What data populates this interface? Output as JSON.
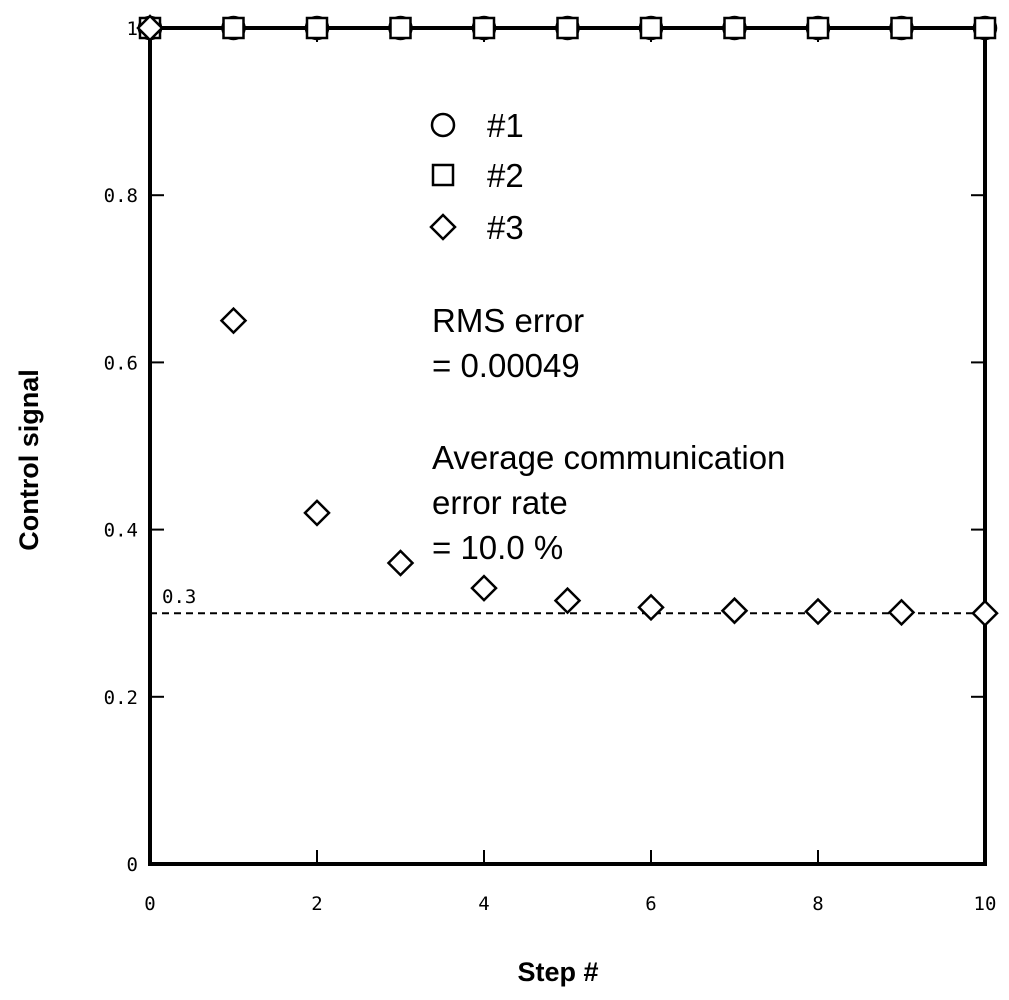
{
  "chart_data": {
    "type": "scatter",
    "title": "",
    "xlabel": "Step #",
    "ylabel": "Control signal",
    "xlim": [
      0,
      10
    ],
    "ylim": [
      0,
      1
    ],
    "x_ticks": [
      0,
      2,
      4,
      6,
      8,
      10
    ],
    "x_tick_labels": [
      "0",
      "2",
      "4",
      "6",
      "8",
      "10"
    ],
    "y_ticks": [
      0,
      0.2,
      0.4,
      0.6,
      0.8,
      1
    ],
    "y_tick_labels": [
      "0",
      "0.2",
      "0.4",
      "0.6",
      "0.8",
      "1"
    ],
    "grid": false,
    "legend_position": "top-center",
    "series": [
      {
        "name": "#1",
        "marker": "circle",
        "x": [
          0,
          1,
          2,
          3,
          4,
          5,
          6,
          7,
          8,
          9,
          10
        ],
        "y": [
          1,
          1,
          1,
          1,
          1,
          1,
          1,
          1,
          1,
          1,
          1
        ]
      },
      {
        "name": "#2",
        "marker": "square",
        "x": [
          0,
          1,
          2,
          3,
          4,
          5,
          6,
          7,
          8,
          9,
          10
        ],
        "y": [
          1,
          1,
          1,
          1,
          1,
          1,
          1,
          1,
          1,
          1,
          1
        ]
      },
      {
        "name": "#3",
        "marker": "diamond",
        "x": [
          0,
          1,
          2,
          3,
          4,
          5,
          6,
          7,
          8,
          9,
          10
        ],
        "y": [
          1,
          0.65,
          0.42,
          0.36,
          0.33,
          0.315,
          0.307,
          0.303,
          0.302,
          0.301,
          0.3
        ]
      }
    ],
    "reference_line": {
      "y": 0.3,
      "label": "0.3",
      "style": "dashed"
    },
    "annotations": [
      {
        "lines": [
          "RMS  error",
          "= 0.00049"
        ]
      },
      {
        "lines": [
          "Average communication",
          "error rate",
          "= 10.0 %"
        ]
      }
    ]
  }
}
